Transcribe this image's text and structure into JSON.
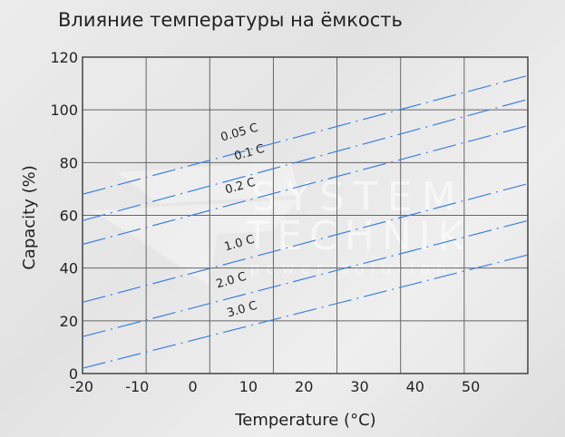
{
  "chart_data": {
    "type": "line",
    "title": "Влияние температуры на ёмкость",
    "xlabel": "Temperature (°C)",
    "ylabel": "Capacity (%)",
    "xlim": [
      -20,
      50
    ],
    "ylim": [
      0,
      120
    ],
    "x_ticks": [
      -20,
      -10,
      0,
      10,
      20,
      30,
      40,
      50
    ],
    "y_ticks": [
      0,
      20,
      40,
      60,
      80,
      100,
      120
    ],
    "grid": true,
    "line_style": "dash-dot",
    "line_color": "#3b7fe0",
    "series": [
      {
        "name": "0.05 C",
        "x": [
          -20,
          50
        ],
        "y": [
          68,
          113
        ]
      },
      {
        "name": "0.1 C",
        "x": [
          -20,
          50
        ],
        "y": [
          58,
          104
        ]
      },
      {
        "name": "0.2 C",
        "x": [
          -20,
          50
        ],
        "y": [
          49,
          94
        ]
      },
      {
        "name": "1.0 C",
        "x": [
          -20,
          50
        ],
        "y": [
          27,
          72
        ]
      },
      {
        "name": "2.0 C",
        "x": [
          -20,
          50
        ],
        "y": [
          14,
          58
        ]
      },
      {
        "name": "3.0 C",
        "x": [
          -20,
          50
        ],
        "y": [
          2,
          45
        ]
      }
    ]
  },
  "watermark": {
    "line1": "SYSTEM",
    "line2": "TECHNIK",
    "line3": "power solutions"
  }
}
